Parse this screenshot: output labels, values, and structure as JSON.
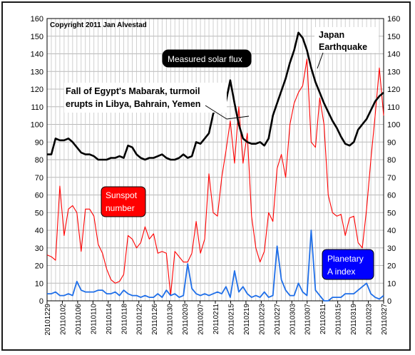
{
  "chart_data": {
    "type": "line",
    "ylim": [
      0,
      160
    ],
    "y_ticks": [
      0,
      10,
      20,
      30,
      40,
      50,
      60,
      70,
      80,
      90,
      100,
      110,
      120,
      130,
      140,
      150,
      160
    ],
    "x_tick_labels": [
      "20101229",
      "20110102",
      "20110106",
      "20110110",
      "20110114",
      "20110118",
      "20110122",
      "20110126",
      "20110130",
      "20110203",
      "20110207",
      "20110211",
      "20110215",
      "20110219",
      "20110223",
      "20110227",
      "20110303",
      "20110307",
      "20110311",
      "20110315",
      "20110319",
      "20110323",
      "20110327"
    ],
    "grid": true,
    "copyright": "Copyright 2011 Jan Alvestad",
    "annotations": {
      "egypt": [
        "Fall of Egypt's Mabarak, turmoil",
        "erupts in Libya, Bahrain, Yemen"
      ],
      "japan": [
        "Japan",
        "Earthquake"
      ]
    },
    "series": [
      {
        "name": "Measured solar flux",
        "label_lines": [
          "Measured solar flux"
        ],
        "color": "#000000",
        "box_color": "#000000",
        "text_color": "#ffffff",
        "values": [
          83,
          83,
          92,
          91,
          91,
          92,
          90,
          87,
          84,
          83,
          83,
          82,
          80,
          80,
          80,
          81,
          81,
          82,
          81,
          88,
          87,
          83,
          81,
          80,
          81,
          81,
          82,
          83,
          81,
          80,
          80,
          81,
          83,
          81,
          82,
          90,
          89,
          92,
          95,
          106,
          112,
          114,
          113,
          125,
          112,
          100,
          92,
          90,
          89,
          89,
          90,
          88,
          92,
          105,
          112,
          119,
          126,
          135,
          142,
          152,
          149,
          142,
          132,
          124,
          118,
          112,
          107,
          102,
          98,
          93,
          89,
          88,
          90,
          97,
          100,
          103,
          108,
          113,
          116,
          118
        ]
      },
      {
        "name": "Sunspot number",
        "label_lines": [
          "Sunspot",
          "number"
        ],
        "color": "#ff0000",
        "box_color": "#ff0000",
        "text_color": "#ffffff",
        "values": [
          26,
          25,
          23,
          65,
          37,
          52,
          54,
          50,
          28,
          52,
          52,
          48,
          32,
          27,
          18,
          12,
          10,
          11,
          15,
          37,
          35,
          30,
          33,
          42,
          35,
          38,
          27,
          28,
          27,
          3,
          28,
          25,
          22,
          22,
          27,
          45,
          27,
          35,
          72,
          50,
          48,
          70,
          85,
          102,
          78,
          110,
          78,
          95,
          48,
          30,
          22,
          28,
          50,
          45,
          75,
          83,
          70,
          100,
          112,
          118,
          122,
          137,
          90,
          87,
          115,
          100,
          60,
          50,
          48,
          49,
          37,
          47,
          48,
          33,
          30,
          52,
          80,
          105,
          132,
          105
        ]
      },
      {
        "name": "Planetary A index",
        "label_lines": [
          "Planetary",
          "A index"
        ],
        "color": "#1e6ee8",
        "box_color": "#0000ff",
        "text_color": "#ffffff",
        "values": [
          4,
          4,
          5,
          3,
          3,
          4,
          3,
          11,
          6,
          5,
          5,
          5,
          6,
          6,
          4,
          4,
          5,
          3,
          6,
          4,
          3,
          3,
          2,
          3,
          2,
          2,
          4,
          2,
          6,
          3,
          4,
          2,
          3,
          21,
          7,
          4,
          3,
          4,
          3,
          4,
          5,
          4,
          8,
          2,
          17,
          5,
          8,
          4,
          2,
          3,
          2,
          5,
          2,
          3,
          31,
          12,
          6,
          3,
          3,
          10,
          5,
          3,
          40,
          6,
          3,
          0,
          0,
          2,
          2,
          2,
          4,
          4,
          4,
          6,
          8,
          10,
          4,
          2,
          1,
          3
        ]
      }
    ]
  }
}
